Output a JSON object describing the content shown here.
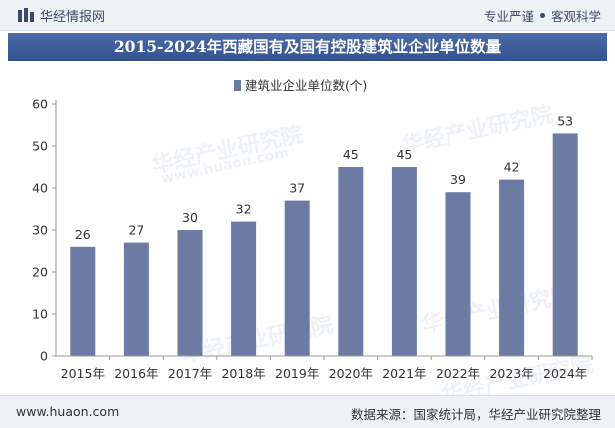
{
  "header": {
    "brand_name": "华经情报网",
    "slogan_left": "专业严谨",
    "slogan_right": "客观科学"
  },
  "title": "2015-2024年西藏国有及国有控股建筑业企业单位数量",
  "watermark_text": "华经产业研究院",
  "watermark_url": "www.huaon.com",
  "chart_data": {
    "type": "bar",
    "categories": [
      "2015年",
      "2016年",
      "2017年",
      "2018年",
      "2019年",
      "2020年",
      "2021年",
      "2022年",
      "2023年",
      "2024年"
    ],
    "series": [
      {
        "name": "建筑业企业单位数(个)",
        "values": [
          26,
          27,
          30,
          32,
          37,
          45,
          45,
          39,
          42,
          53
        ]
      }
    ],
    "ylim": [
      0,
      60
    ],
    "yticks": [
      0,
      10,
      20,
      30,
      40,
      50,
      60
    ],
    "grid": false,
    "legend_position": "top-center",
    "bar_color": "#6b7ba4"
  },
  "footer": {
    "website": "www.huaon.com",
    "source": "数据来源：国家统计局，华经产业研究院整理"
  }
}
